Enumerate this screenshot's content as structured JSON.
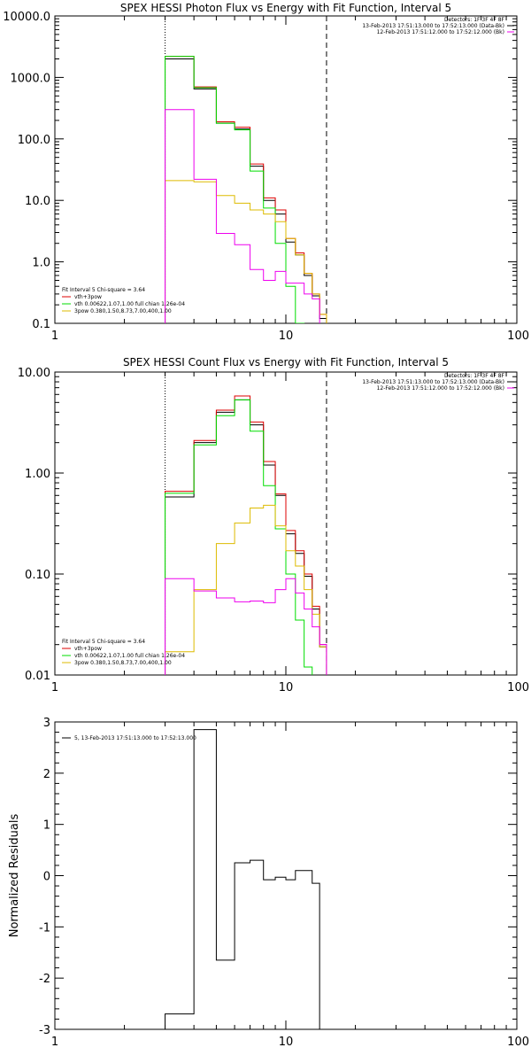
{
  "colors": {
    "black": "#000000",
    "red": "#dd0000",
    "green": "#00dd00",
    "magenta": "#ee00ee",
    "yellow": "#ddbb00"
  },
  "chart_data": [
    {
      "type": "line",
      "title": "SPEX HESSI Photon Flux vs Energy with Fit Function, Interval 5",
      "xlabel": "",
      "ylabel": "",
      "xscale": "log",
      "yscale": "log",
      "xlim": [
        1,
        100
      ],
      "ylim": [
        0.1,
        10000
      ],
      "x_ticks": [
        "1",
        "10",
        "100"
      ],
      "y_ticks": [
        "10000.0",
        "1000.0",
        "100.0",
        "10.0",
        "1.0",
        "0.1"
      ],
      "vlines": [
        {
          "x": 3,
          "style": "dotted"
        },
        {
          "x": 15,
          "style": "dashed"
        }
      ],
      "legend_top_right": [
        {
          "text": "Detectors: 1F 3F 4F 8F",
          "color": "none"
        },
        {
          "text": "13-Feb-2013 17:51:13.000 to 17:52:13.000 (Data-Bk)",
          "color": "black"
        },
        {
          "text": "12-Feb-2013 17:51:12.000 to 17:52:12.000 (Bk)",
          "color": "magenta"
        }
      ],
      "legend_bottom_left": [
        {
          "text": "Fit Interval 5   Chi-square = 3.64",
          "color": "none"
        },
        {
          "text": "vth+3pow",
          "color": "red"
        },
        {
          "text": "vth 0.00622,1.07,1.00  full chian 1.26e-04",
          "color": "green"
        },
        {
          "text": "3pow 0.380,1.50,8.73,7.00,400,1.00",
          "color": "yellow"
        }
      ],
      "bin_edges": [
        3,
        4,
        5,
        6,
        7,
        8,
        9,
        10,
        11,
        12,
        13,
        14,
        15,
        16,
        17
      ],
      "series": [
        {
          "color": "black",
          "values": [
            2000,
            650,
            180,
            145,
            36,
            10,
            6,
            2.1,
            1.3,
            0.6,
            0.28,
            0.12,
            null,
            null
          ]
        },
        {
          "color": "red",
          "values": [
            2200,
            700,
            190,
            155,
            39,
            11,
            7,
            2.4,
            1.4,
            0.65,
            0.3,
            0.14,
            null,
            null
          ]
        },
        {
          "color": "green",
          "values": [
            2200,
            680,
            180,
            140,
            30,
            7.5,
            2.0,
            0.4,
            0.1,
            null,
            null,
            null,
            null,
            null
          ]
        },
        {
          "color": "yellow",
          "values": [
            21,
            20,
            12,
            9,
            7,
            6,
            4.5,
            2.4,
            1.3,
            0.65,
            0.3,
            0.14,
            null,
            null
          ]
        },
        {
          "color": "magenta",
          "values": [
            300,
            22,
            2.9,
            1.9,
            0.75,
            0.5,
            0.7,
            0.45,
            0.45,
            0.3,
            0.25,
            null,
            null,
            null
          ]
        }
      ]
    },
    {
      "type": "line",
      "title": "SPEX HESSI Count Flux vs Energy with Fit Function, Interval 5",
      "xlabel": "",
      "ylabel": "",
      "xscale": "log",
      "yscale": "log",
      "xlim": [
        1,
        100
      ],
      "ylim": [
        0.01,
        10
      ],
      "x_ticks": [
        "1",
        "10",
        "100"
      ],
      "y_ticks": [
        "10.00",
        "1.00",
        "0.10",
        "0.01"
      ],
      "vlines": [
        {
          "x": 3,
          "style": "dotted"
        },
        {
          "x": 15,
          "style": "dashed"
        }
      ],
      "legend_top_right": [
        {
          "text": "Detectors: 1F 3F 4F 8F",
          "color": "none"
        },
        {
          "text": "13-Feb-2013 17:51:13.000 to 17:52:13.000 (Data-Bk)",
          "color": "black"
        },
        {
          "text": "12-Feb-2013 17:51:12.000 to 17:52:12.000 (Bk)",
          "color": "magenta"
        }
      ],
      "legend_bottom_left": [
        {
          "text": "Fit Interval 5   Chi-square = 3.64",
          "color": "none"
        },
        {
          "text": "vth+3pow",
          "color": "red"
        },
        {
          "text": "vth 0.00622,1.07,1.00  full chian 1.26e-04",
          "color": "green"
        },
        {
          "text": "3pow 0.380,1.50,8.73,7.00,400,1.00",
          "color": "yellow"
        }
      ],
      "bin_edges": [
        3,
        4,
        5,
        6,
        7,
        8,
        9,
        10,
        11,
        12,
        13,
        14,
        15,
        16,
        17
      ],
      "series": [
        {
          "color": "black",
          "values": [
            0.58,
            2.0,
            4.0,
            5.3,
            3.0,
            1.2,
            0.6,
            0.25,
            0.16,
            0.095,
            0.045,
            0.019,
            null,
            null
          ]
        },
        {
          "color": "red",
          "values": [
            0.66,
            2.1,
            4.2,
            5.8,
            3.2,
            1.3,
            0.62,
            0.27,
            0.17,
            0.1,
            0.048,
            0.02,
            null,
            null
          ]
        },
        {
          "color": "green",
          "values": [
            0.63,
            1.9,
            3.7,
            5.3,
            2.6,
            0.75,
            0.28,
            0.1,
            0.035,
            0.012,
            null,
            null,
            null,
            null
          ]
        },
        {
          "color": "yellow",
          "values": [
            0.017,
            0.07,
            0.2,
            0.32,
            0.45,
            0.48,
            0.3,
            0.17,
            0.12,
            0.07,
            0.04,
            0.019,
            null,
            null
          ]
        },
        {
          "color": "magenta",
          "values": [
            0.09,
            0.068,
            0.058,
            0.053,
            0.054,
            0.052,
            0.07,
            0.09,
            0.065,
            0.045,
            0.03,
            0.02,
            null,
            null
          ]
        }
      ]
    },
    {
      "type": "line",
      "title": "",
      "xlabel": "",
      "ylabel": "Normalized Residuals",
      "xscale": "log",
      "yscale": "linear",
      "xlim": [
        1,
        100
      ],
      "ylim": [
        -3,
        3
      ],
      "x_ticks": [
        "1",
        "10",
        "100"
      ],
      "y_ticks": [
        "3",
        "2",
        "1",
        "0",
        "-1",
        "-2",
        "-3"
      ],
      "legend_top_left": [
        {
          "text": "5, 13-Feb-2013 17:51:13.000 to 17:52:13.000",
          "color": "black"
        }
      ],
      "bin_edges": [
        3,
        4,
        5,
        6,
        7,
        8,
        9,
        10,
        11,
        12,
        13,
        14,
        15
      ],
      "series": [
        {
          "color": "black",
          "values": [
            -2.7,
            2.85,
            -1.65,
            0.25,
            0.3,
            -0.08,
            -0.03,
            -0.08,
            0.1,
            0.1,
            -0.15,
            null
          ]
        }
      ]
    }
  ]
}
